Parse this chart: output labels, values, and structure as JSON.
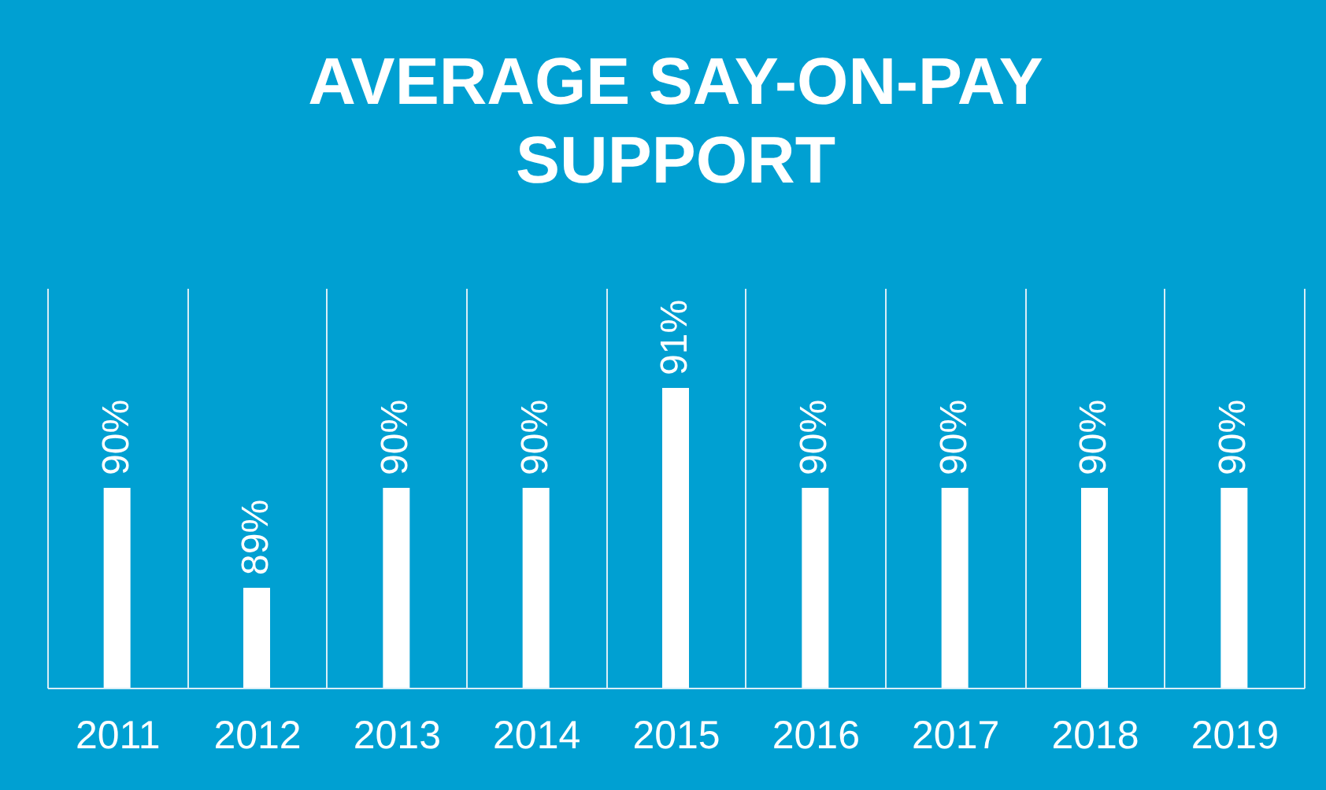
{
  "chart_data": {
    "type": "bar",
    "title": "AVERAGE SAY-ON-PAY SUPPORT",
    "categories": [
      "2011",
      "2012",
      "2013",
      "2014",
      "2015",
      "2016",
      "2017",
      "2018",
      "2019"
    ],
    "values": [
      90,
      89,
      90,
      90,
      91,
      90,
      90,
      90,
      90
    ],
    "value_labels": [
      "90%",
      "89%",
      "90%",
      "90%",
      "91%",
      "90%",
      "90%",
      "90%",
      "90%"
    ],
    "color": "#ffffff",
    "ylim": [
      88,
      92
    ],
    "grid": "x"
  }
}
